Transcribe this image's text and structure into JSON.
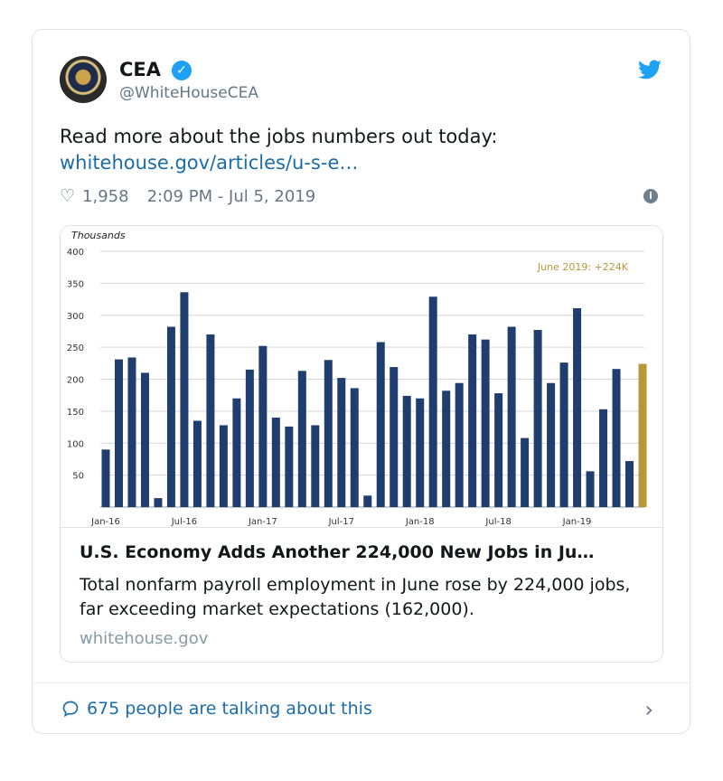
{
  "account": {
    "name": "CEA",
    "handle": "@WhiteHouseCEA",
    "verified_icon": "verified-badge-icon"
  },
  "tweet": {
    "text": "Read more about the jobs numbers out today:",
    "link": "whitehouse.gov/articles/u-s-e…",
    "likes": "1,958",
    "timestamp": "2:09 PM - Jul 5, 2019"
  },
  "card": {
    "title": "U.S. Economy Adds Another 224,000 New Jobs in Ju…",
    "description": "Total nonfarm payroll employment in June rose by 224,000 jobs, far exceeding market expectations (162,000).",
    "domain": "whitehouse.gov"
  },
  "footer": {
    "talking": "675 people are talking about this"
  },
  "colors": {
    "bar": "#1f3d6e",
    "highlight": "#b8973a",
    "link": "#1b6ca8",
    "accent": "#1da1f2"
  },
  "chart_data": {
    "type": "bar",
    "ylabel": "Thousands",
    "ylim": [
      0,
      400
    ],
    "yticks": [
      400,
      350,
      300,
      250,
      200,
      150,
      100,
      50
    ],
    "annotation": "June 2019: +224K",
    "xtick_labels": [
      "Jan-16",
      "Jul-16",
      "Jan-17",
      "Jul-17",
      "Jan-18",
      "Jul-18",
      "Jan-19"
    ],
    "xtick_positions": [
      0,
      6,
      12,
      18,
      24,
      30,
      36
    ],
    "series": [
      {
        "values": [
          90,
          231,
          234,
          210,
          14,
          282,
          336,
          135,
          270,
          128,
          170,
          215,
          252,
          140,
          126,
          213,
          128,
          230,
          202,
          186,
          18,
          258,
          219,
          174,
          170,
          329,
          182,
          194,
          270,
          262,
          178,
          282,
          108,
          277,
          194,
          226,
          311,
          56,
          153,
          216,
          72,
          224
        ]
      }
    ],
    "highlight_index": 41
  }
}
